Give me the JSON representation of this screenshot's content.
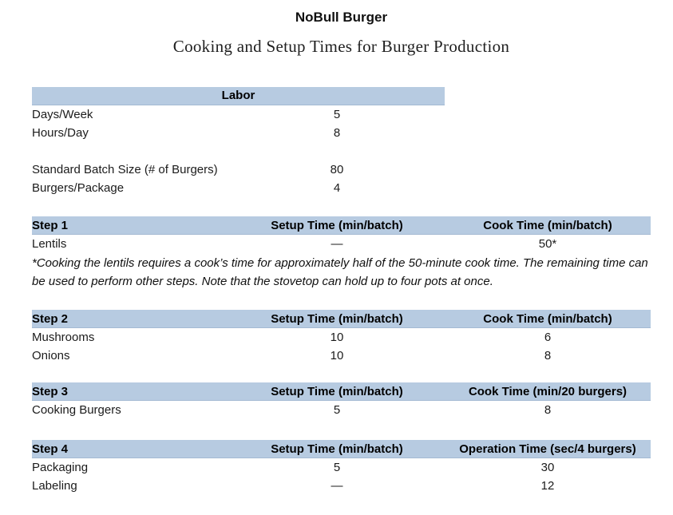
{
  "header": {
    "title": "NoBull Burger",
    "subtitle": "Cooking and Setup Times for Burger Production"
  },
  "colors": {
    "table_header_bg": "#b7cbe1",
    "table_header_border": "#a4bad3",
    "text": "#1b1b1b"
  },
  "labor": {
    "header": "Labor",
    "rows": [
      {
        "label": "Days/Week",
        "value": "5"
      },
      {
        "label": "Hours/Day",
        "value": "8"
      },
      {
        "label": "",
        "value": ""
      },
      {
        "label": "Standard Batch Size (# of Burgers)",
        "value": "80"
      },
      {
        "label": "Burgers/Package",
        "value": "4"
      }
    ]
  },
  "steps": [
    {
      "name": "Step 1",
      "col2_header": "Setup Time (min/batch)",
      "col3_header": "Cook Time (min/batch)",
      "rows": [
        {
          "label": "Lentils",
          "setup": "—",
          "time": "50*"
        }
      ],
      "footnote": "*Cooking the lentils requires a cook’s time for approximately half of the 50-minute cook time. The remaining time can be used to perform other steps. Note that the stovetop can hold up to four pots at once."
    },
    {
      "name": "Step 2",
      "col2_header": "Setup Time (min/batch)",
      "col3_header": "Cook Time (min/batch)",
      "rows": [
        {
          "label": "Mushrooms",
          "setup": "10",
          "time": "6"
        },
        {
          "label": "Onions",
          "setup": "10",
          "time": "8"
        }
      ]
    },
    {
      "name": "Step 3",
      "col2_header": "Setup Time (min/batch)",
      "col3_header": "Cook Time (min/20 burgers)",
      "rows": [
        {
          "label": "Cooking Burgers",
          "setup": "5",
          "time": "8"
        }
      ]
    },
    {
      "name": "Step 4",
      "col2_header": "Setup Time (min/batch)",
      "col3_header": "Operation Time (sec/4 burgers)",
      "rows": [
        {
          "label": "Packaging",
          "setup": "5",
          "time": "30"
        },
        {
          "label": "Labeling",
          "setup": "—",
          "time": "12"
        }
      ]
    }
  ]
}
